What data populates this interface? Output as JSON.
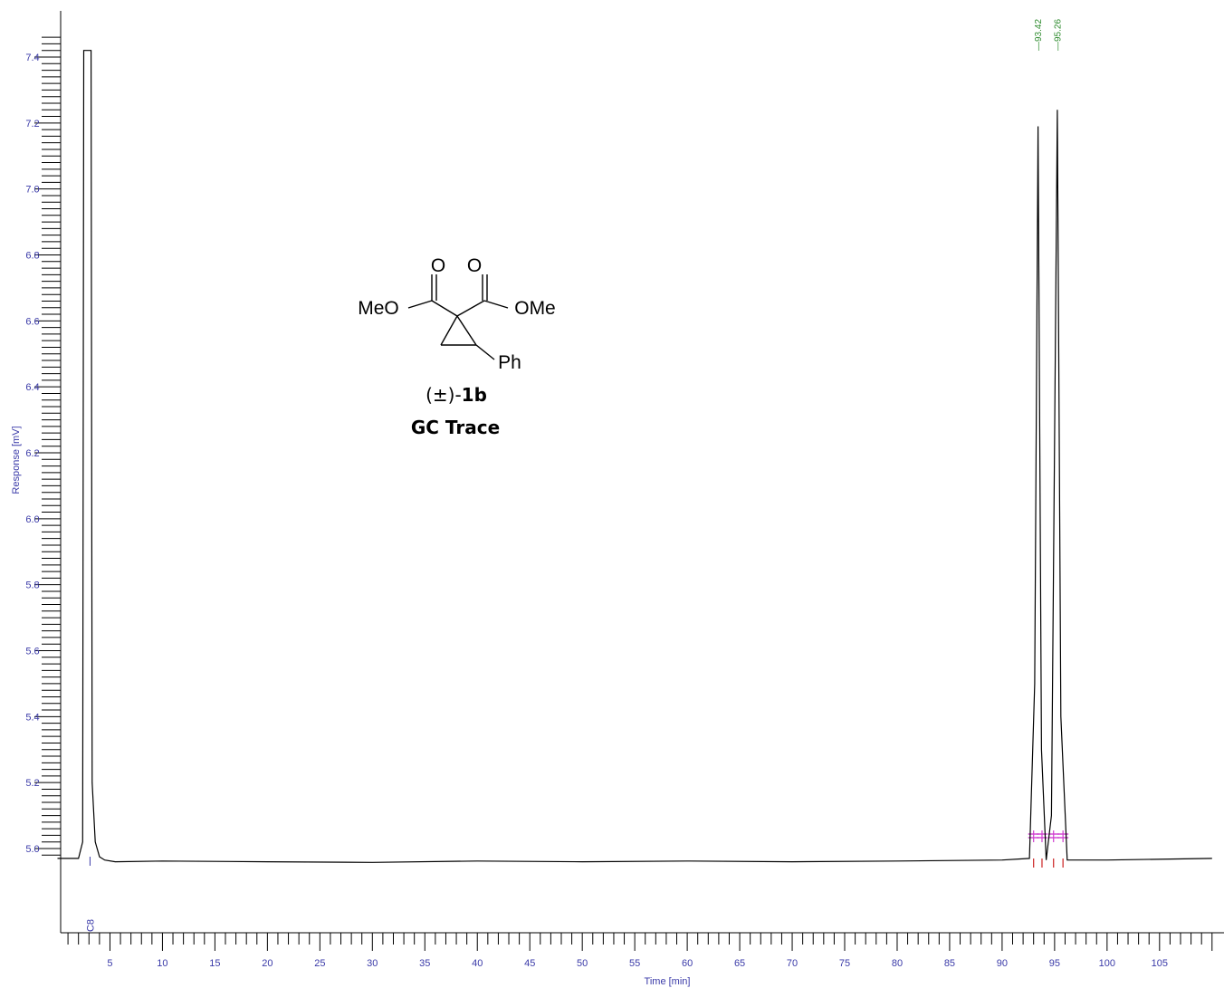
{
  "chart_data": {
    "type": "line",
    "xlabel": "Time [min]",
    "ylabel": "Response [mV]",
    "xlim": [
      0,
      110
    ],
    "ylim": [
      4.72,
      7.48
    ],
    "x_ticks": [
      5,
      10,
      15,
      20,
      25,
      30,
      35,
      40,
      45,
      50,
      55,
      60,
      65,
      70,
      75,
      80,
      85,
      90,
      95,
      100,
      105
    ],
    "y_ticks": [
      "5.0",
      "5.2",
      "5.4",
      "5.6",
      "5.8",
      "6.0",
      "6.2",
      "6.4",
      "6.6",
      "6.8",
      "7.0",
      "7.2",
      "7.4"
    ],
    "baseline": 4.96,
    "series": [
      {
        "values_x": [
          0.0,
          2.0,
          2.4,
          2.5,
          3.2,
          3.3,
          3.6,
          4.0,
          4.5,
          5.5,
          10,
          20,
          30,
          40,
          50,
          60,
          70,
          80,
          90,
          92.6,
          93.1,
          93.42,
          93.75,
          94.2,
          94.7,
          95.26,
          95.6,
          96.2,
          100,
          110
        ],
        "values_y": [
          4.97,
          4.97,
          5.02,
          7.42,
          7.42,
          5.2,
          5.02,
          4.975,
          4.965,
          4.96,
          4.962,
          4.96,
          4.958,
          4.962,
          4.96,
          4.962,
          4.96,
          4.962,
          4.965,
          4.97,
          5.5,
          7.19,
          5.3,
          4.965,
          5.1,
          7.24,
          5.4,
          4.965,
          4.965,
          4.97
        ]
      }
    ],
    "peaks": [
      {
        "label": "93.42",
        "x": 93.42
      },
      {
        "label": "95.26",
        "x": 95.26
      }
    ],
    "integration_marks_x": [
      93.0,
      93.8,
      94.9,
      95.8
    ],
    "annotation_c8": {
      "label": "C8",
      "x": 3.1
    },
    "color_trace": "#000000",
    "color_axis_text": "#3a3aa8",
    "color_peak_label": "#2e8b2e",
    "color_integration": "#d040d0"
  },
  "structure": {
    "o_left": "O",
    "o_right": "O",
    "meo": "MeO",
    "ome": "OMe",
    "ph": "Ph"
  },
  "caption": {
    "compound_prefix": "(±)-",
    "compound_id": "1b",
    "title": "GC Trace"
  }
}
